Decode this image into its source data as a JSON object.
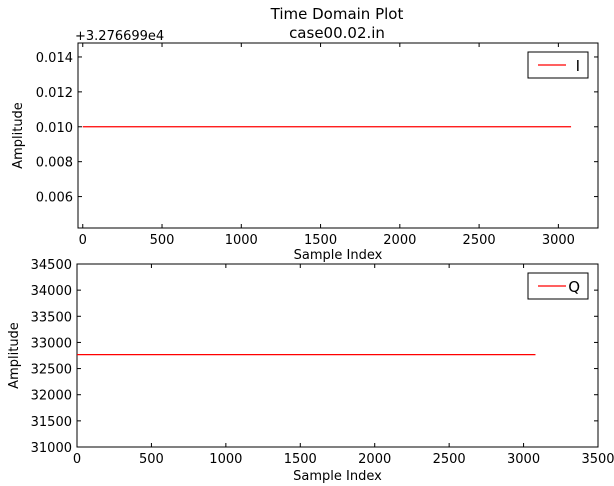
{
  "figure": {
    "title_line1": "Time Domain Plot",
    "title_line2": "case00.02.in"
  },
  "chart_data": [
    {
      "type": "line",
      "title": "",
      "offset_text": "+3.276699e4",
      "xlabel": "Sample Index",
      "ylabel": "Amplitude",
      "xlim": [
        -30,
        3250
      ],
      "ylim": [
        0.0042,
        0.0148
      ],
      "xticks": [
        0,
        500,
        1000,
        1500,
        2000,
        2500,
        3000
      ],
      "xtick_labels": [
        "0",
        "500",
        "1000",
        "1500",
        "2000",
        "2500",
        "3000"
      ],
      "yticks": [
        0.006,
        0.008,
        0.01,
        0.012,
        0.014
      ],
      "ytick_labels": [
        "0.006",
        "0.008",
        "0.010",
        "0.012",
        "0.014"
      ],
      "grid": false,
      "legend_position": "top-right",
      "series": [
        {
          "name": "I",
          "color": "#ff0000",
          "x": [
            0,
            3080
          ],
          "values": [
            0.01,
            0.01
          ]
        }
      ]
    },
    {
      "type": "line",
      "title": "",
      "xlabel": "Sample Index",
      "ylabel": "Amplitude",
      "xlim": [
        0,
        3500
      ],
      "ylim": [
        31000,
        34500
      ],
      "xticks": [
        0,
        500,
        1000,
        1500,
        2000,
        2500,
        3000,
        3500
      ],
      "xtick_labels": [
        "0",
        "500",
        "1000",
        "1500",
        "2000",
        "2500",
        "3000",
        "3500"
      ],
      "yticks": [
        31000,
        31500,
        32000,
        32500,
        33000,
        33500,
        34000,
        34500
      ],
      "ytick_labels": [
        "31000",
        "31500",
        "32000",
        "32500",
        "33000",
        "33500",
        "34000",
        "34500"
      ],
      "grid": false,
      "legend_position": "top-right",
      "series": [
        {
          "name": "Q",
          "color": "#ff0000",
          "x": [
            0,
            3080
          ],
          "values": [
            32767,
            32767
          ]
        }
      ]
    }
  ]
}
